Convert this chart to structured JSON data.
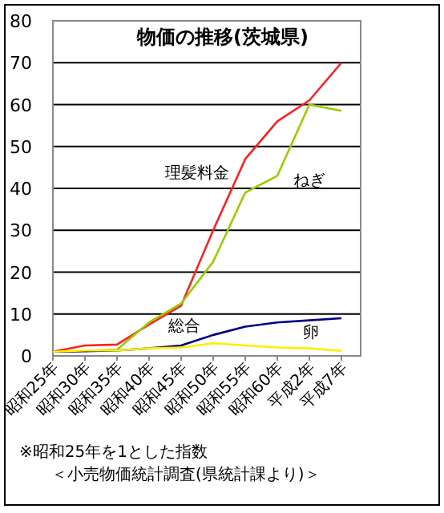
{
  "chart_data": {
    "type": "line",
    "title": "物価の推移(茨城県)",
    "categories": [
      "昭和25年",
      "昭和30年",
      "昭和35年",
      "昭和40年",
      "昭和45年",
      "昭和50年",
      "昭和55年",
      "昭和60年",
      "平成2年",
      "平成7年"
    ],
    "series": [
      {
        "name": "理髪料金",
        "color": "#ff2020",
        "values": [
          1,
          2.5,
          2.7,
          7.5,
          12,
          30,
          47,
          56,
          61,
          70
        ]
      },
      {
        "name": "ねぎ",
        "color": "#99cc00",
        "values": [
          1,
          1.2,
          1.5,
          8,
          12.5,
          22.5,
          39,
          43,
          60,
          58.5
        ]
      },
      {
        "name": "総合",
        "color": "#000080",
        "values": [
          1,
          1.1,
          1.3,
          1.8,
          2.5,
          5,
          7,
          8,
          8.5,
          9
        ]
      },
      {
        "name": "卵",
        "color": "#ffee00",
        "values": [
          1,
          1.3,
          1.3,
          1.8,
          2,
          3,
          2.5,
          2,
          1.8,
          1.2
        ]
      }
    ],
    "ylim": [
      0,
      80
    ],
    "yticks": [
      0,
      10,
      20,
      30,
      40,
      50,
      60,
      70,
      80
    ],
    "grid": "y",
    "legend": false,
    "annotations": [
      "※昭和25年を1とした指数",
      "＜小売物価統計調査(県統計課より)＞"
    ]
  }
}
